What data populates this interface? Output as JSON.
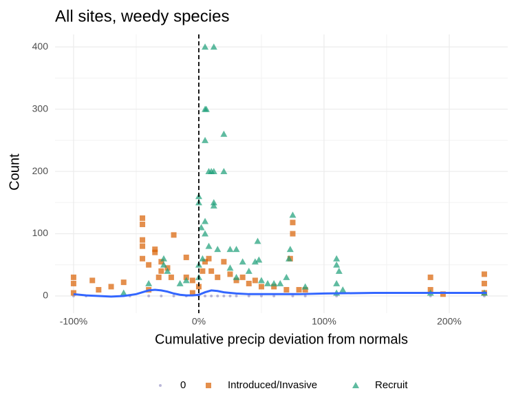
{
  "chart_data": {
    "type": "scatter",
    "title": "All sites, weedy species",
    "x_label": "Cumulative precip deviation from normals",
    "y_label": "Count",
    "xlim": [
      -114.8,
      246.7
    ],
    "ylim": [
      -27.6,
      420
    ],
    "xticks": [
      {
        "value": -100,
        "label": "-100%"
      },
      {
        "value": 0,
        "label": "0%"
      },
      {
        "value": 100,
        "label": "100%"
      },
      {
        "value": 200,
        "label": "200%"
      }
    ],
    "yticks": [
      0,
      100,
      200,
      300,
      400
    ],
    "x_minor_gridlines": [
      -50,
      50,
      150
    ],
    "y_minor_gridlines": [
      50,
      150,
      250,
      350
    ],
    "grid": true,
    "vline": 0,
    "legend": "bottom",
    "series": [
      {
        "name": "0",
        "color": "#7570b3",
        "shape": "circle",
        "x": [
          -100,
          -90,
          -55,
          -40,
          -30,
          -20,
          -10,
          0,
          5,
          10,
          15,
          20,
          25,
          30,
          40,
          50,
          60,
          75,
          85,
          110,
          185,
          228
        ],
        "values": [
          0,
          0,
          0,
          0,
          0,
          0,
          0,
          0,
          0,
          0,
          0,
          0,
          0,
          0,
          0,
          0,
          0,
          0,
          0,
          0,
          0,
          0
        ]
      },
      {
        "name": "Introduced/Invasive",
        "color": "#d95f02",
        "shape": "square",
        "x": [
          -100,
          -100,
          -100,
          -85,
          -70,
          -60,
          -45,
          -45,
          -45,
          -45,
          -45,
          -40,
          -35,
          -35,
          -30,
          -30,
          -32,
          -25,
          -22,
          -20,
          -10,
          -10,
          -5,
          0,
          3,
          5,
          8,
          10,
          15,
          20,
          25,
          30,
          35,
          40,
          45,
          50,
          60,
          70,
          75,
          75,
          73,
          80,
          85,
          185,
          185,
          195,
          228,
          228,
          228,
          -5,
          -40,
          -80
        ],
        "values": [
          30,
          20,
          5,
          25,
          15,
          22,
          125,
          115,
          90,
          80,
          60,
          50,
          75,
          70,
          55,
          40,
          30,
          45,
          30,
          98,
          62,
          30,
          25,
          15,
          40,
          55,
          60,
          40,
          30,
          55,
          35,
          25,
          30,
          20,
          25,
          15,
          15,
          10,
          118,
          100,
          60,
          10,
          10,
          30,
          10,
          3,
          35,
          20,
          5,
          5,
          10,
          10
        ]
      },
      {
        "name": "Recruit",
        "color": "#1b9e77",
        "shape": "triangle",
        "x": [
          5,
          12,
          5,
          6,
          20,
          5,
          8,
          10,
          12,
          20,
          0,
          0,
          12,
          12,
          5,
          2,
          75,
          5,
          8,
          15,
          25,
          30,
          47,
          48,
          45,
          73,
          72,
          110,
          110,
          112,
          -28,
          -28,
          -10,
          -25,
          55,
          60,
          65,
          85,
          110,
          110,
          115,
          30,
          40,
          25,
          35,
          50,
          70,
          -40,
          -60,
          -15,
          0,
          0,
          3,
          185,
          228
        ],
        "values": [
          400,
          400,
          300,
          300,
          260,
          250,
          200,
          200,
          200,
          200,
          160,
          150,
          150,
          145,
          120,
          110,
          130,
          100,
          80,
          75,
          75,
          75,
          88,
          58,
          55,
          75,
          60,
          60,
          50,
          40,
          60,
          50,
          25,
          40,
          20,
          20,
          20,
          15,
          20,
          5,
          10,
          30,
          40,
          45,
          55,
          25,
          30,
          20,
          5,
          20,
          30,
          50,
          60,
          5,
          5
        ]
      }
    ],
    "trend": {
      "color": "#3366ff",
      "x": [
        -100,
        -90,
        -80,
        -70,
        -60,
        -50,
        -45,
        -40,
        -35,
        -30,
        -25,
        -20,
        -15,
        -10,
        -5,
        0,
        5,
        10,
        15,
        20,
        25,
        30,
        40,
        50,
        60,
        80,
        100,
        140,
        200,
        230
      ],
      "values": [
        3,
        1,
        0,
        -1,
        0,
        3,
        6,
        9,
        10,
        9,
        7,
        4,
        2,
        1,
        1,
        2,
        6,
        9,
        8,
        6,
        5,
        4,
        3,
        3,
        3,
        3,
        4,
        5,
        5,
        5
      ]
    }
  }
}
